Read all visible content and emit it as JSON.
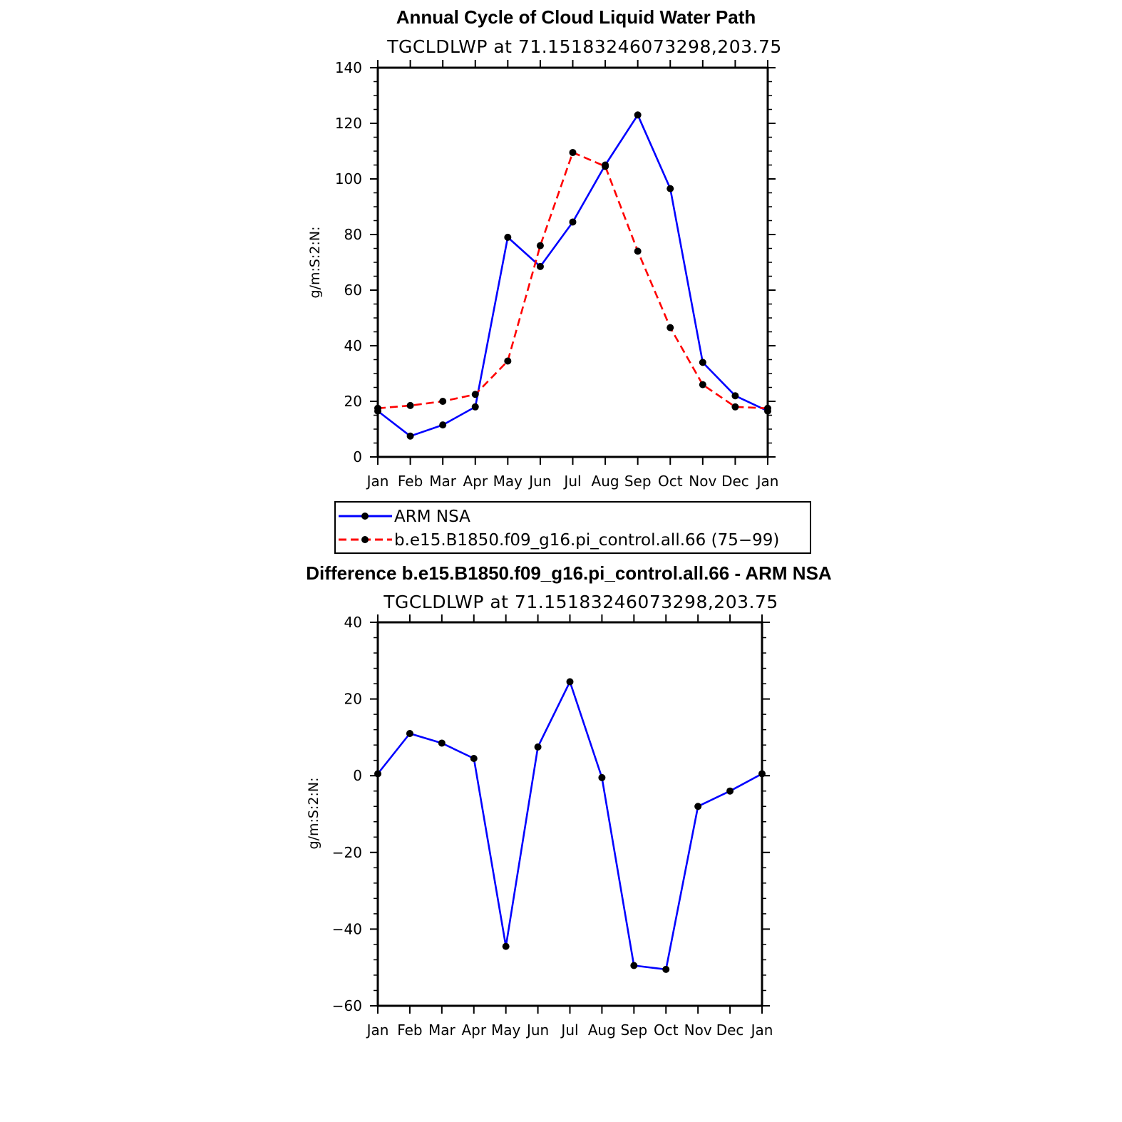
{
  "colors": {
    "obs": "#0000ff",
    "model": "#ff0000",
    "marker": "#000000",
    "axis": "#000000"
  },
  "chart_data": [
    {
      "type": "line",
      "title": "Annual Cycle of Cloud Liquid Water Path",
      "subtitle": "TGCLDLWP  at  71.15183246073298,203.75",
      "ylabel": "g/m:S:2:N:",
      "ylim": [
        0,
        140
      ],
      "yticks": [
        0,
        20,
        40,
        60,
        80,
        100,
        120,
        140
      ],
      "categories": [
        "Jan",
        "Feb",
        "Mar",
        "Apr",
        "May",
        "Jun",
        "Jul",
        "Aug",
        "Sep",
        "Oct",
        "Nov",
        "Dec",
        "Jan"
      ],
      "series": [
        {
          "name": "ARM  NSA",
          "style": "solid",
          "color_key": "obs",
          "values": [
            16.5,
            7.5,
            11.5,
            18,
            79,
            68.5,
            84.5,
            105,
            123,
            96.5,
            34,
            22,
            16.5
          ]
        },
        {
          "name": "b.e15.B1850.f09_g16.pi_control.all.66  (75−99)",
          "style": "dashed",
          "color_key": "model",
          "values": [
            17.5,
            18.5,
            20,
            22.5,
            34.5,
            76,
            109.5,
            104.5,
            74,
            46.5,
            26,
            18,
            17.5
          ]
        }
      ]
    },
    {
      "type": "line",
      "title": "Difference b.e15.B1850.f09_g16.pi_control.all.66 - ARM NSA",
      "subtitle": "TGCLDLWP  at  71.15183246073298,203.75",
      "ylabel": "g/m:S:2:N:",
      "ylim": [
        -60,
        40
      ],
      "yticks": [
        -60,
        -40,
        -20,
        0,
        20,
        40
      ],
      "ytick_labels": [
        "−60",
        "−40",
        "−20",
        "0",
        "20",
        "40"
      ],
      "categories": [
        "Jan",
        "Feb",
        "Mar",
        "Apr",
        "May",
        "Jun",
        "Jul",
        "Aug",
        "Sep",
        "Oct",
        "Nov",
        "Dec",
        "Jan"
      ],
      "series": [
        {
          "name": "Difference",
          "style": "solid",
          "color_key": "obs",
          "values": [
            0.5,
            11,
            8.5,
            4.5,
            -44.5,
            7.5,
            24.5,
            -0.5,
            -49.5,
            -50.5,
            -8,
            -4,
            0.5
          ]
        }
      ]
    }
  ]
}
